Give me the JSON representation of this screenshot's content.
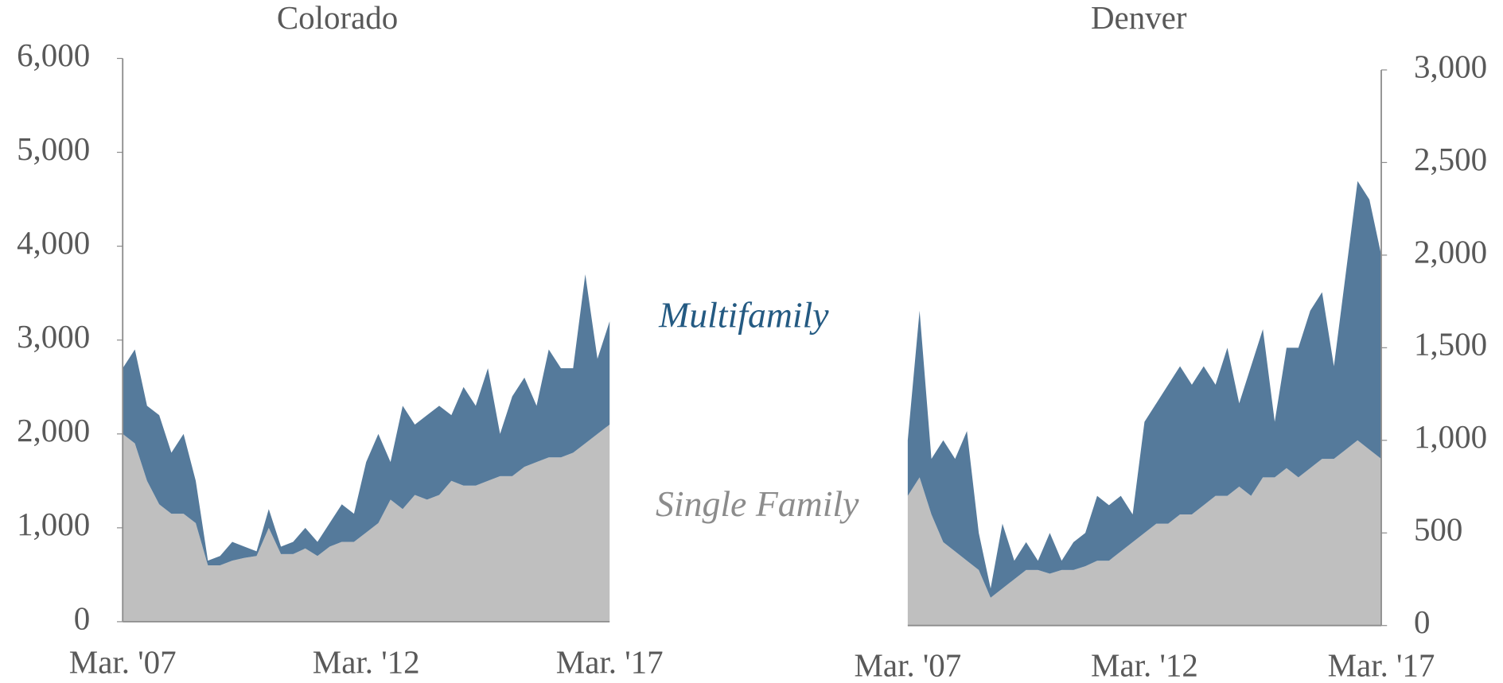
{
  "chart_data": [
    {
      "type": "stacked_area",
      "title": "Colorado",
      "y_axis_position": "left",
      "categories": [
        "Mar. '07",
        null,
        null,
        null,
        null,
        null,
        null,
        null,
        null,
        null,
        null,
        null,
        null,
        null,
        null,
        null,
        null,
        null,
        null,
        null,
        "Mar. '12",
        null,
        null,
        null,
        null,
        null,
        null,
        null,
        null,
        null,
        null,
        null,
        null,
        null,
        null,
        null,
        null,
        null,
        null,
        null,
        "Mar. '17"
      ],
      "series": [
        {
          "name": "Single Family",
          "color": "#bfbfbf",
          "values": [
            2000,
            1900,
            1500,
            1250,
            1150,
            1150,
            1050,
            600,
            600,
            650,
            680,
            700,
            1000,
            720,
            720,
            780,
            700,
            800,
            850,
            850,
            950,
            1050,
            1300,
            1200,
            1350,
            1300,
            1350,
            1500,
            1450,
            1450,
            1500,
            1550,
            1550,
            1650,
            1700,
            1750,
            1750,
            1800,
            1900,
            2000,
            2100
          ]
        },
        {
          "name": "Multifamily",
          "color": "#557a9b",
          "values": [
            700,
            1000,
            800,
            950,
            650,
            850,
            450,
            50,
            100,
            200,
            120,
            50,
            200,
            80,
            130,
            220,
            150,
            250,
            400,
            300,
            750,
            950,
            400,
            1100,
            750,
            900,
            950,
            700,
            1050,
            850,
            1200,
            450,
            850,
            950,
            600,
            1150,
            950,
            900,
            1800,
            800,
            1100
          ]
        }
      ],
      "ylim": [
        0,
        6000
      ],
      "yticks": [
        0,
        {
          "value": 1000,
          "label": "1,000"
        },
        {
          "value": 2000,
          "label": "2,000"
        },
        {
          "value": 3000,
          "label": "3,000"
        },
        {
          "value": 4000,
          "label": "4,000"
        },
        {
          "value": 5000,
          "label": "5,000"
        },
        {
          "value": 6000,
          "label": "6,000"
        }
      ]
    },
    {
      "type": "stacked_area",
      "title": "Denver",
      "y_axis_position": "right",
      "categories": [
        "Mar. '07",
        null,
        null,
        null,
        null,
        null,
        null,
        null,
        null,
        null,
        null,
        null,
        null,
        null,
        null,
        null,
        null,
        null,
        null,
        null,
        "Mar. '12",
        null,
        null,
        null,
        null,
        null,
        null,
        null,
        null,
        null,
        null,
        null,
        null,
        null,
        null,
        null,
        null,
        null,
        null,
        null,
        "Mar. '17"
      ],
      "series": [
        {
          "name": "Single Family",
          "color": "#bfbfbf",
          "values": [
            700,
            800,
            600,
            450,
            400,
            350,
            300,
            150,
            200,
            250,
            300,
            300,
            280,
            300,
            300,
            320,
            350,
            350,
            400,
            450,
            500,
            550,
            550,
            600,
            600,
            650,
            700,
            700,
            750,
            700,
            800,
            800,
            850,
            800,
            850,
            900,
            900,
            950,
            1000,
            950,
            900
          ]
        },
        {
          "name": "Multifamily",
          "color": "#557a9b",
          "values": [
            300,
            900,
            300,
            550,
            500,
            700,
            200,
            50,
            350,
            100,
            150,
            50,
            220,
            50,
            150,
            180,
            350,
            300,
            300,
            150,
            600,
            650,
            750,
            800,
            700,
            750,
            600,
            800,
            450,
            700,
            800,
            300,
            650,
            700,
            850,
            900,
            500,
            950,
            1400,
            1350,
            1100
          ]
        }
      ],
      "ylim": [
        0,
        3000
      ],
      "yticks": [
        0,
        500,
        {
          "value": 1000,
          "label": "1,000"
        },
        {
          "value": 1500,
          "label": "1,500"
        },
        {
          "value": 2000,
          "label": "2,000"
        },
        {
          "value": 2500,
          "label": "2,500"
        },
        {
          "value": 3000,
          "label": "3,000"
        }
      ]
    }
  ]
}
